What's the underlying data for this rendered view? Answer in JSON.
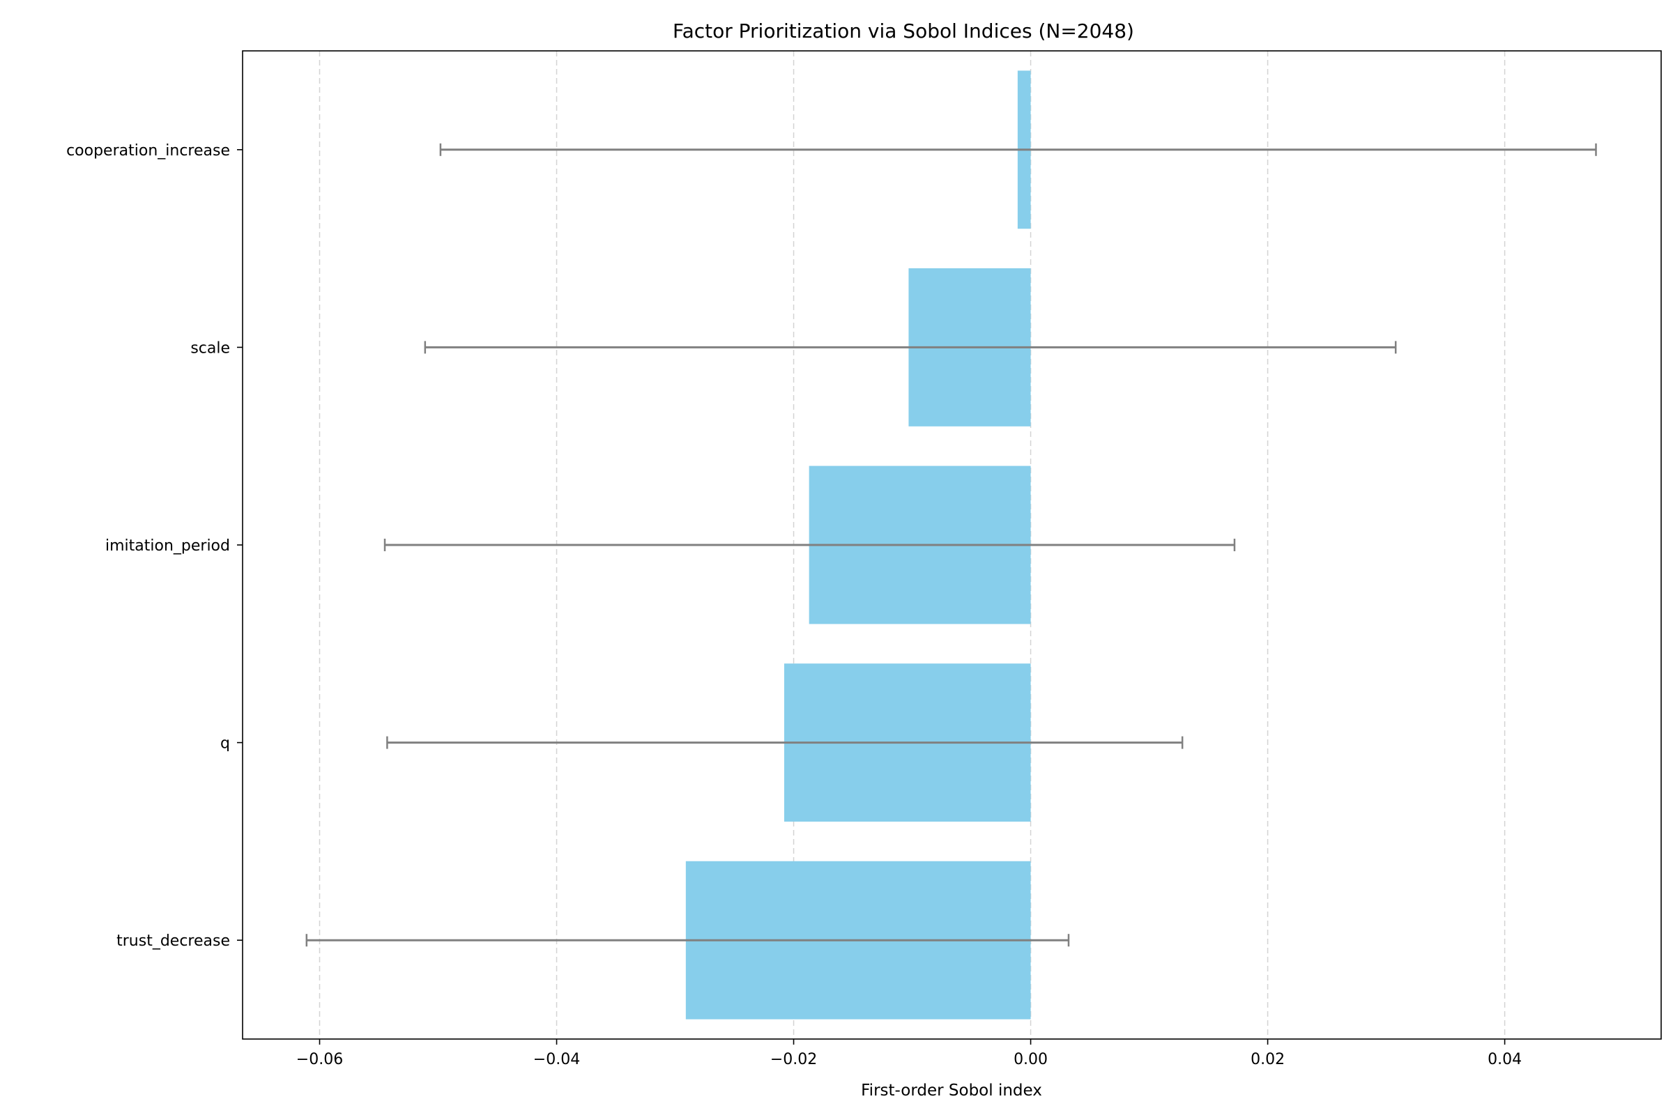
{
  "chart_data": {
    "type": "bar",
    "orientation": "horizontal",
    "title": "Factor Prioritization via Sobol Indices (N=2048)",
    "xlabel": "First-order Sobol index",
    "ylabel": "",
    "categories": [
      "cooperation_increase",
      "scale",
      "imitation_period",
      "q",
      "trust_decrease"
    ],
    "values": [
      -0.0011,
      -0.0103,
      -0.0187,
      -0.0208,
      -0.0291
    ],
    "error_low": [
      -0.0498,
      -0.0511,
      -0.0545,
      -0.0543,
      -0.0611
    ],
    "error_high": [
      0.0477,
      0.0308,
      0.0172,
      0.0128,
      0.0032
    ],
    "xlim": [
      -0.0665,
      0.0532
    ],
    "xticks": [
      -0.06,
      -0.04,
      -0.02,
      0.0,
      0.02,
      0.04
    ],
    "xtick_labels": [
      "−0.06",
      "−0.04",
      "−0.02",
      "0.00",
      "0.02",
      "0.04"
    ],
    "grid": "x, dashed",
    "colors": {
      "bar": "#87CEEB",
      "errorbar": "#808080",
      "grid": "#d3d3d3",
      "axis": "#000000"
    }
  }
}
